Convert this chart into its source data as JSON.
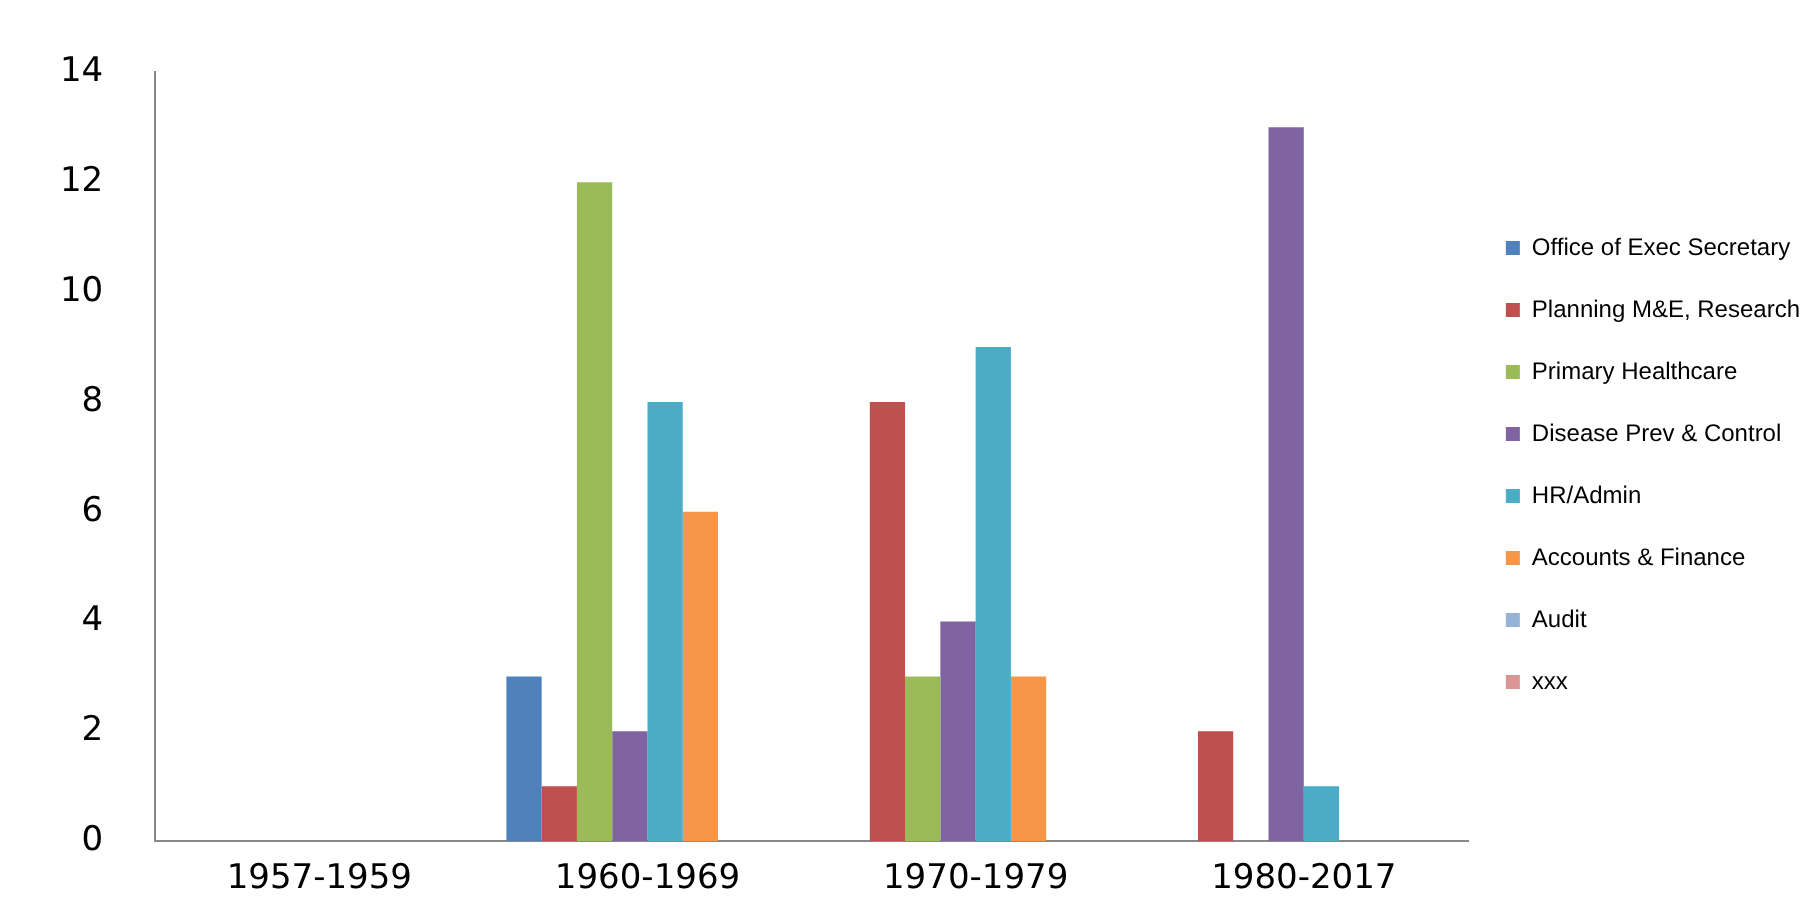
{
  "chart_data": {
    "type": "bar",
    "categories": [
      "1957-1959",
      "1960-1969",
      "1970-1979",
      "1980-2017"
    ],
    "series": [
      {
        "name": "Office of Exec Secretary",
        "color": "#4f81bd",
        "values": [
          0,
          3,
          0,
          0
        ]
      },
      {
        "name": "Planning M&E, Research",
        "color": "#c0504d",
        "values": [
          0,
          1,
          8,
          2
        ]
      },
      {
        "name": "Primary Healthcare",
        "color": "#9bbb59",
        "values": [
          0,
          12,
          3,
          0
        ]
      },
      {
        "name": "Disease Prev & Control",
        "color": "#8064a2",
        "values": [
          0,
          2,
          4,
          13
        ]
      },
      {
        "name": "HR/Admin",
        "color": "#4bacc6",
        "values": [
          0,
          8,
          9,
          1
        ]
      },
      {
        "name": "Accounts & Finance",
        "color": "#f79646",
        "values": [
          0,
          6,
          3,
          0
        ]
      },
      {
        "name": "Audit",
        "color": "#95b3d7",
        "values": [
          0,
          0,
          0,
          0
        ]
      },
      {
        "name": "xxx",
        "color": "#d99694",
        "values": [
          0,
          0,
          0,
          0
        ]
      }
    ],
    "ylim": [
      0,
      14
    ],
    "yticks": [
      0,
      2,
      4,
      6,
      8,
      10,
      12,
      14
    ],
    "grid": false,
    "legend": "right"
  }
}
